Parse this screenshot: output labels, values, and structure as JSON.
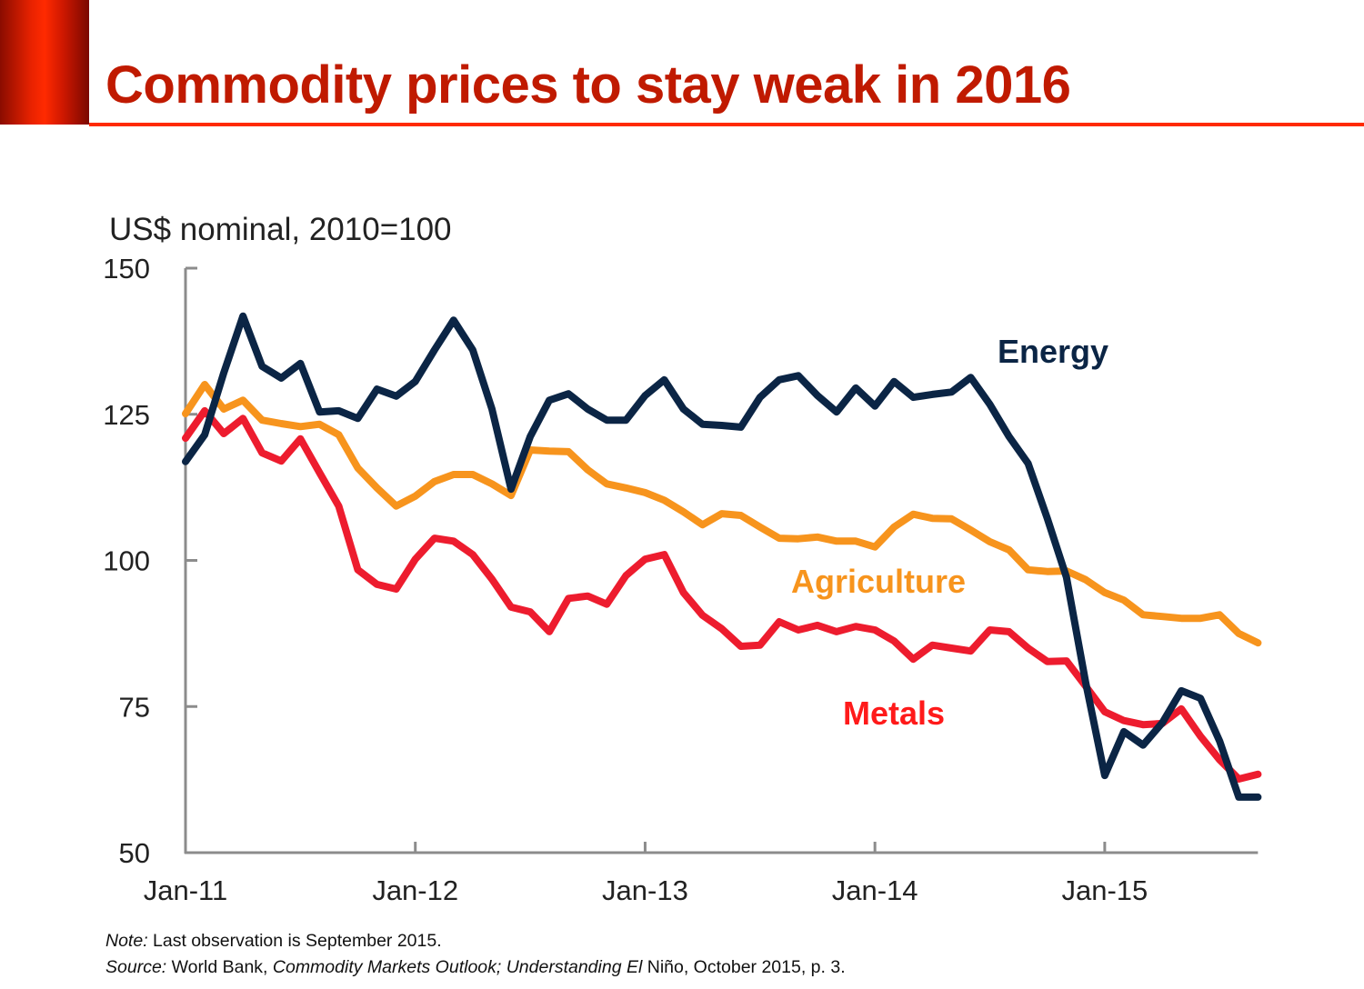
{
  "header": {
    "title": "Commodity prices to stay weak in 2016"
  },
  "chart_data": {
    "type": "line",
    "title": "",
    "ylabel": "US$ nominal, 2010=100",
    "xlabel": "",
    "ylim": [
      50,
      150
    ],
    "yticks": [
      50,
      75,
      100,
      125,
      150
    ],
    "xticks": [
      "Jan-11",
      "Jan-12",
      "Jan-13",
      "Jan-14",
      "Jan-15"
    ],
    "x_start": "Jan-11",
    "x_end": "Sep-15",
    "frequency": "monthly",
    "grid": false,
    "legend": "inline labels",
    "series": [
      {
        "name": "Energy",
        "color": "#0b2545",
        "values": [
          116.9,
          121.5,
          132.1,
          141.8,
          133.2,
          131.2,
          133.7,
          125.4,
          125.6,
          124.3,
          129.3,
          128.1,
          130.6,
          136.0,
          141.1,
          136.0,
          125.9,
          112.2,
          121.2,
          127.4,
          128.5,
          125.9,
          124.0,
          124.0,
          128.2,
          130.9,
          125.9,
          123.3,
          123.1,
          122.8,
          127.9,
          130.9,
          131.6,
          128.2,
          125.4,
          129.5,
          126.4,
          130.6,
          127.9,
          128.4,
          128.8,
          131.3,
          126.7,
          121.2,
          116.6,
          107.2,
          97.1,
          79.2,
          63.2,
          70.7,
          68.4,
          72.2,
          77.7,
          76.4,
          69.1,
          59.5,
          59.5
        ]
      },
      {
        "name": "Agriculture",
        "color": "#f7941d",
        "values": [
          125.1,
          130.1,
          125.9,
          127.4,
          124.0,
          123.4,
          122.9,
          123.3,
          121.5,
          115.8,
          112.4,
          109.3,
          111.0,
          113.5,
          114.7,
          114.7,
          113.1,
          111.1,
          118.9,
          118.7,
          118.6,
          115.5,
          113.1,
          112.4,
          111.6,
          110.3,
          108.3,
          106.1,
          108.0,
          107.7,
          105.7,
          103.8,
          103.7,
          104.0,
          103.3,
          103.3,
          102.3,
          105.7,
          107.9,
          107.2,
          107.1,
          105.2,
          103.2,
          101.8,
          98.4,
          98.1,
          98.2,
          96.7,
          94.5,
          93.2,
          90.7,
          90.4,
          90.1,
          90.1,
          90.7,
          87.5,
          85.9
        ]
      },
      {
        "name": "Metals",
        "color": "#ed1c2e",
        "values": [
          120.9,
          125.6,
          121.7,
          124.3,
          118.4,
          117.0,
          120.8,
          115.0,
          109.3,
          98.4,
          95.9,
          95.1,
          100.2,
          103.8,
          103.3,
          101.0,
          96.8,
          92.0,
          91.2,
          87.8,
          93.5,
          93.9,
          92.5,
          97.4,
          100.2,
          101.0,
          94.5,
          90.6,
          88.3,
          85.3,
          85.5,
          89.5,
          88.1,
          88.9,
          87.8,
          88.7,
          88.1,
          86.2,
          83.1,
          85.5,
          85.0,
          84.5,
          88.1,
          87.8,
          85.0,
          82.7,
          82.8,
          78.5,
          74.1,
          72.6,
          71.9,
          72.1,
          74.6,
          69.9,
          65.9,
          62.6,
          63.4
        ]
      }
    ],
    "series_label_colors": {
      "Energy": "#0b2545",
      "Agriculture": "#f7941d",
      "Metals": "#ff1a1a"
    }
  },
  "footer": {
    "note_label": "Note:",
    "note_text": " Last observation is September 2015.",
    "source_label": "Source:",
    "source_text1": " World Bank, ",
    "source_italic": "Commodity Markets Outlook; Understanding El",
    "source_text2": " Niño, October 2015, p. 3."
  }
}
